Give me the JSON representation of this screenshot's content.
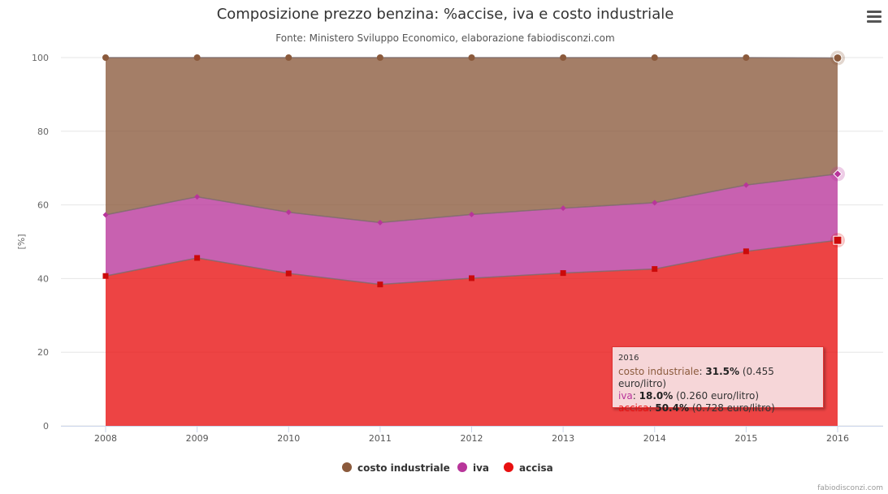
{
  "colors": {
    "costo": "#8B5A3C",
    "iva": "#B8359A",
    "accisa": "#E81010"
  },
  "icons": {
    "menu": "hamburger-menu-icon"
  },
  "tooltip": {
    "header": "2016",
    "rows": [
      {
        "name": "costo industriale",
        "pct": "31.5%",
        "extra": "(0.455 euro/litro)"
      },
      {
        "name": "iva",
        "pct": "18.0%",
        "extra": "(0.260 euro/litro)"
      },
      {
        "name": "accisa",
        "pct": "50.4%",
        "extra": "(0.728 euro/litro)"
      }
    ]
  },
  "credit": "fabiodisconzi.com",
  "chart_data": {
    "type": "area",
    "stacking": "stacked",
    "title": "Composizione prezzo benzina: %accise, iva e costo industriale",
    "subtitle": "Fonte: Ministero Sviluppo Economico, elaborazione fabiodisconzi.com",
    "xlabel": "",
    "ylabel": "[%]",
    "ylim": [
      0,
      100
    ],
    "yticks": [
      0,
      20,
      40,
      60,
      80,
      100
    ],
    "grid": true,
    "legend_position": "bottom-center",
    "x": [
      "2008",
      "2009",
      "2010",
      "2011",
      "2012",
      "2013",
      "2014",
      "2015",
      "2016"
    ],
    "series": [
      {
        "name": "costo industriale",
        "values": [
          42.7,
          37.8,
          42.0,
          44.8,
          42.6,
          40.9,
          39.4,
          34.6,
          31.5
        ]
      },
      {
        "name": "iva",
        "values": [
          16.6,
          16.6,
          16.6,
          16.8,
          17.3,
          17.6,
          18.0,
          18.0,
          18.0
        ]
      },
      {
        "name": "accisa",
        "values": [
          40.7,
          45.6,
          41.4,
          38.4,
          40.1,
          41.5,
          42.6,
          47.4,
          50.4
        ]
      }
    ]
  }
}
